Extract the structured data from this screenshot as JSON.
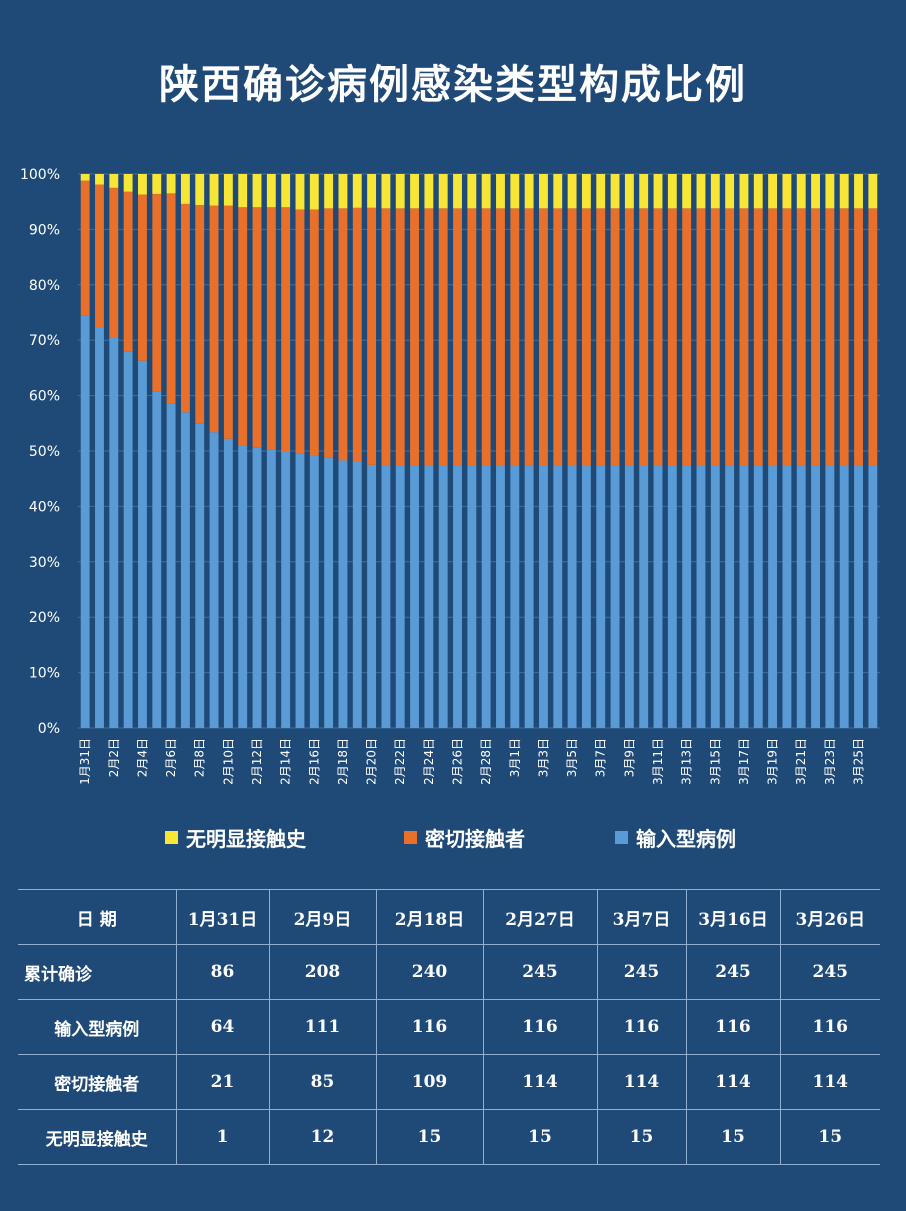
{
  "title": "陕西确诊病例感染类型构成比例",
  "colors": {
    "background": "#1f4a78",
    "imported": "#5b9bd5",
    "contact": "#e8702a",
    "unknown": "#f7e636",
    "grid": "#3f6e9a"
  },
  "chart_data": {
    "type": "bar",
    "stacked": true,
    "percent": true,
    "title": "陕西确诊病例感染类型构成比例",
    "ylim": [
      0,
      100
    ],
    "yticks": [
      "0%",
      "10%",
      "20%",
      "30%",
      "40%",
      "50%",
      "60%",
      "70%",
      "80%",
      "90%",
      "100%"
    ],
    "grid": true,
    "legend_position": "bottom",
    "categories": [
      "1月31日",
      "2月1日",
      "2月2日",
      "2月3日",
      "2月4日",
      "2月5日",
      "2月6日",
      "2月7日",
      "2月8日",
      "2月9日",
      "2月10日",
      "2月11日",
      "2月12日",
      "2月13日",
      "2月14日",
      "2月15日",
      "2月16日",
      "2月17日",
      "2月18日",
      "2月19日",
      "2月20日",
      "2月21日",
      "2月22日",
      "2月23日",
      "2月24日",
      "2月25日",
      "2月26日",
      "2月27日",
      "2月28日",
      "2月29日",
      "3月1日",
      "3月2日",
      "3月3日",
      "3月4日",
      "3月5日",
      "3月6日",
      "3月7日",
      "3月8日",
      "3月9日",
      "3月10日",
      "3月11日",
      "3月12日",
      "3月13日",
      "3月14日",
      "3月15日",
      "3月16日",
      "3月17日",
      "3月18日",
      "3月19日",
      "3月20日",
      "3月21日",
      "3月22日",
      "3月23日",
      "3月24日",
      "3月25日",
      "3月26日"
    ],
    "tick_labels": [
      "1月31日",
      "2月2日",
      "2月4日",
      "2月6日",
      "2月8日",
      "2月10日",
      "2月12日",
      "2月14日",
      "2月16日",
      "2月18日",
      "2月20日",
      "2月22日",
      "2月24日",
      "2月26日",
      "2月28日",
      "3月1日",
      "3月3日",
      "3月5日",
      "3月7日",
      "3月9日",
      "3月11日",
      "3月13日",
      "3月15日",
      "3月17日",
      "3月19日",
      "3月21日",
      "3月23日",
      "3月25日"
    ],
    "series": [
      {
        "name": "输入型病例",
        "color": "#5b9bd5",
        "values": [
          74.4,
          72.3,
          70.5,
          68.0,
          66.3,
          60.8,
          58.5,
          57.0,
          55.0,
          53.4,
          52.2,
          51.0,
          50.6,
          50.2,
          50.0,
          49.6,
          49.2,
          48.8,
          48.3,
          48.1,
          47.5,
          47.3,
          47.3,
          47.3,
          47.3,
          47.3,
          47.3,
          47.3,
          47.3,
          47.3,
          47.3,
          47.3,
          47.3,
          47.3,
          47.3,
          47.3,
          47.3,
          47.3,
          47.3,
          47.3,
          47.3,
          47.3,
          47.3,
          47.3,
          47.3,
          47.3,
          47.3,
          47.3,
          47.3,
          47.3,
          47.3,
          47.3,
          47.3,
          47.3,
          47.3,
          47.3
        ]
      },
      {
        "name": "密切接触者",
        "color": "#e8702a",
        "values": [
          24.4,
          25.8,
          27.0,
          28.8,
          30.0,
          35.6,
          38.0,
          37.6,
          39.4,
          40.9,
          42.1,
          43.0,
          43.4,
          43.8,
          44.0,
          44.0,
          44.4,
          45.0,
          45.5,
          45.8,
          46.4,
          46.5,
          46.5,
          46.5,
          46.5,
          46.5,
          46.5,
          46.5,
          46.5,
          46.5,
          46.5,
          46.5,
          46.5,
          46.5,
          46.5,
          46.5,
          46.5,
          46.5,
          46.5,
          46.5,
          46.5,
          46.5,
          46.5,
          46.5,
          46.5,
          46.5,
          46.5,
          46.5,
          46.5,
          46.5,
          46.5,
          46.5,
          46.5,
          46.5,
          46.5,
          46.5
        ]
      },
      {
        "name": "无明显接触史",
        "color": "#f7e636",
        "values": [
          1.2,
          1.9,
          2.5,
          3.2,
          3.7,
          3.6,
          3.5,
          5.4,
          5.6,
          5.7,
          5.7,
          6.0,
          6.0,
          6.0,
          6.0,
          6.4,
          6.4,
          6.2,
          6.2,
          6.1,
          6.1,
          6.2,
          6.2,
          6.2,
          6.2,
          6.2,
          6.2,
          6.2,
          6.2,
          6.2,
          6.2,
          6.2,
          6.2,
          6.2,
          6.2,
          6.2,
          6.2,
          6.2,
          6.2,
          6.2,
          6.2,
          6.2,
          6.2,
          6.2,
          6.2,
          6.2,
          6.2,
          6.2,
          6.2,
          6.2,
          6.2,
          6.2,
          6.2,
          6.2,
          6.2,
          6.2
        ]
      }
    ]
  },
  "legend": [
    {
      "label": "无明显接触史",
      "color": "#f7e636"
    },
    {
      "label": "密切接触者",
      "color": "#e8702a"
    },
    {
      "label": "输入型病例",
      "color": "#5b9bd5"
    }
  ],
  "table": {
    "header": [
      "日 期",
      "1月31日",
      "2月9日",
      "2月18日",
      "2月27日",
      "3月7日",
      "3月16日",
      "3月26日"
    ],
    "rows": [
      {
        "label": "累计确诊",
        "values": [
          "86",
          "208",
          "240",
          "245",
          "245",
          "245",
          "245"
        ]
      },
      {
        "label": "输入型病例",
        "values": [
          "64",
          "111",
          "116",
          "116",
          "116",
          "116",
          "116"
        ]
      },
      {
        "label": "密切接触者",
        "values": [
          "21",
          "85",
          "109",
          "114",
          "114",
          "114",
          "114"
        ]
      },
      {
        "label": "无明显接触史",
        "values": [
          "1",
          "12",
          "15",
          "15",
          "15",
          "15",
          "15"
        ]
      }
    ]
  }
}
